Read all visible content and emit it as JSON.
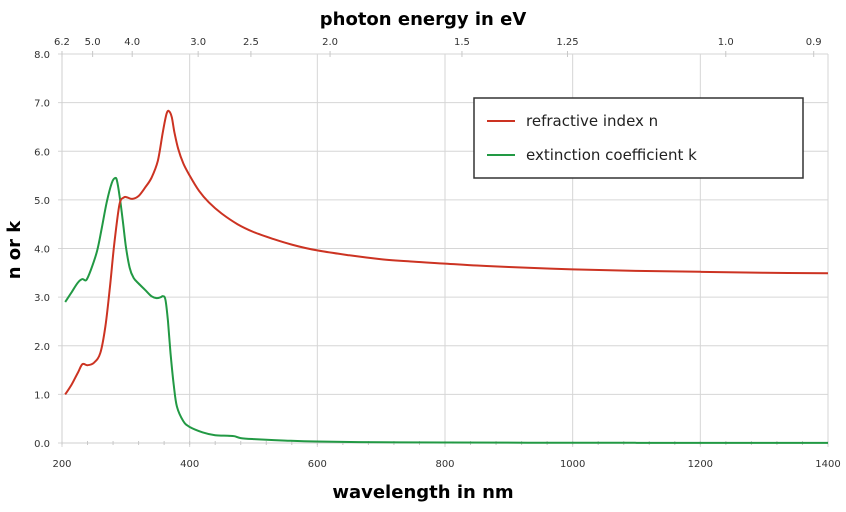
{
  "chart_data": {
    "type": "line",
    "title": "",
    "xlabel": "wavelength in nm",
    "ylabel": "n or k",
    "x2label": "photon energy in eV",
    "xlim": [
      200,
      1400
    ],
    "ylim": [
      0.0,
      8.0
    ],
    "grid": true,
    "legend_position": "top-right",
    "x_ticks": [
      200,
      400,
      600,
      800,
      1000,
      1200,
      1400
    ],
    "x_tick_labels": [
      "200",
      "400",
      "600",
      "800",
      "1000",
      "1200",
      "1400"
    ],
    "y_ticks": [
      0,
      1,
      2,
      3,
      4,
      5,
      6,
      7,
      8
    ],
    "y_tick_labels": [
      "0.0",
      "1.0",
      "2.0",
      "3.0",
      "4.0",
      "5.0",
      "6.0",
      "7.0",
      "8.0"
    ],
    "x2_ticks_ev": [
      6.2,
      5.0,
      4.0,
      3.0,
      2.5,
      2.0,
      1.5,
      1.25,
      1.0,
      0.9
    ],
    "x2_tick_labels": [
      "6.2",
      "5.0",
      "4.0",
      "3.0",
      "2.5",
      "2.0",
      "1.5",
      "1.25",
      "1.0",
      "0.9"
    ],
    "series": [
      {
        "name": "refractive index n",
        "color": "#cc3322",
        "x": [
          205,
          215,
          225,
          232,
          240,
          250,
          260,
          268,
          275,
          282,
          290,
          297,
          302,
          310,
          320,
          330,
          340,
          350,
          358,
          364,
          368,
          372,
          376,
          382,
          390,
          400,
          415,
          430,
          450,
          475,
          500,
          530,
          560,
          600,
          650,
          700,
          750,
          800,
          850,
          900,
          1000,
          1100,
          1200,
          1300,
          1400
        ],
        "values": [
          1.0,
          1.2,
          1.45,
          1.62,
          1.6,
          1.65,
          1.85,
          2.4,
          3.2,
          4.1,
          4.9,
          5.05,
          5.05,
          5.02,
          5.08,
          5.25,
          5.45,
          5.8,
          6.4,
          6.78,
          6.82,
          6.7,
          6.4,
          6.05,
          5.75,
          5.5,
          5.18,
          4.95,
          4.72,
          4.5,
          4.34,
          4.2,
          4.08,
          3.96,
          3.86,
          3.78,
          3.73,
          3.69,
          3.65,
          3.62,
          3.57,
          3.54,
          3.52,
          3.5,
          3.49
        ]
      },
      {
        "name": "extinction coefficient k",
        "color": "#229944",
        "x": [
          205,
          215,
          225,
          232,
          238,
          245,
          255,
          262,
          270,
          278,
          283,
          286,
          290,
          295,
          300,
          306,
          312,
          320,
          330,
          340,
          348,
          355,
          358,
          362,
          366,
          370,
          375,
          380,
          390,
          400,
          420,
          440,
          460,
          470,
          480,
          500,
          550,
          600,
          700,
          800,
          1000,
          1200,
          1400
        ],
        "values": [
          2.9,
          3.1,
          3.3,
          3.37,
          3.35,
          3.55,
          3.95,
          4.4,
          4.95,
          5.35,
          5.45,
          5.4,
          5.1,
          4.6,
          4.05,
          3.6,
          3.4,
          3.28,
          3.15,
          3.02,
          2.98,
          3.0,
          3.02,
          2.95,
          2.5,
          1.85,
          1.2,
          0.75,
          0.45,
          0.33,
          0.22,
          0.16,
          0.15,
          0.14,
          0.1,
          0.08,
          0.05,
          0.03,
          0.015,
          0.01,
          0.005,
          0.003,
          0.002
        ]
      }
    ]
  }
}
